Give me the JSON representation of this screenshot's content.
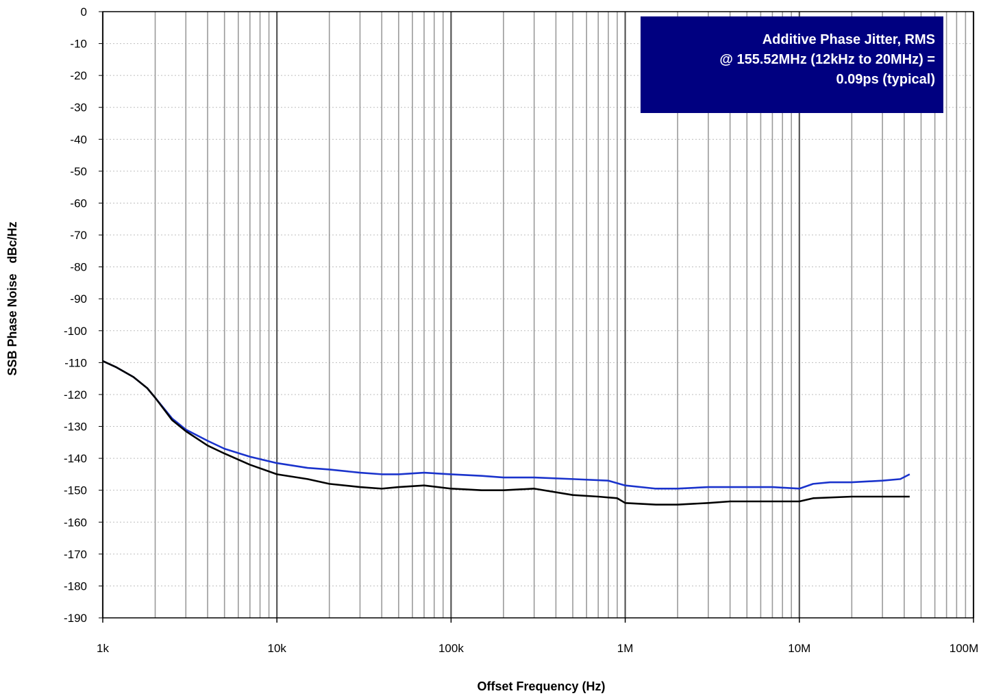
{
  "chart_data": {
    "type": "line",
    "title": "",
    "xlabel": "Offset Frequency (Hz)",
    "ylabel": "SSB Phase Noise   dBc/Hz",
    "x_scale": "log",
    "xlim": [
      1000,
      100000000
    ],
    "ylim": [
      -190,
      0
    ],
    "y_ticks": [
      0,
      -10,
      -20,
      -30,
      -40,
      -50,
      -60,
      -70,
      -80,
      -90,
      -100,
      -110,
      -120,
      -130,
      -140,
      -150,
      -160,
      -170,
      -180,
      -190
    ],
    "x_ticks": [
      1000,
      10000,
      100000,
      1000000,
      10000000,
      100000000
    ],
    "x_tick_labels": [
      "1k",
      "10k",
      "100k",
      "1M",
      "10M",
      "100M"
    ],
    "grid": true,
    "annotation": {
      "lines": [
        "Additive Phase Jitter, RMS",
        "@ 155.52MHz (12kHz to 20MHz) =",
        "0.09ps (typical)"
      ],
      "background": "#000080",
      "text_color": "#ffffff",
      "placement": "top-right"
    },
    "series": [
      {
        "color": "#1a33cc",
        "points": [
          [
            1000,
            -109.5
          ],
          [
            1200,
            -111.5
          ],
          [
            1500,
            -114.5
          ],
          [
            1800,
            -118
          ],
          [
            2000,
            -121
          ],
          [
            2500,
            -127.5
          ],
          [
            3000,
            -131
          ],
          [
            4000,
            -134.5
          ],
          [
            5000,
            -137
          ],
          [
            7000,
            -139.5
          ],
          [
            10000,
            -141.5
          ],
          [
            15000,
            -143
          ],
          [
            20000,
            -143.5
          ],
          [
            30000,
            -144.5
          ],
          [
            40000,
            -145
          ],
          [
            50000,
            -145
          ],
          [
            70000,
            -144.5
          ],
          [
            100000,
            -145
          ],
          [
            150000,
            -145.5
          ],
          [
            200000,
            -146
          ],
          [
            300000,
            -146
          ],
          [
            500000,
            -146.5
          ],
          [
            800000,
            -147
          ],
          [
            1000000,
            -148.5
          ],
          [
            1500000,
            -149.5
          ],
          [
            2000000,
            -149.5
          ],
          [
            3000000,
            -149
          ],
          [
            5000000,
            -149
          ],
          [
            7000000,
            -149
          ],
          [
            10000000,
            -149.5
          ],
          [
            12000000,
            -148
          ],
          [
            15000000,
            -147.5
          ],
          [
            20000000,
            -147.5
          ],
          [
            30000000,
            -147
          ],
          [
            38000000,
            -146.5
          ],
          [
            43000000,
            -145
          ]
        ]
      },
      {
        "color": "#000000",
        "points": [
          [
            1000,
            -109.5
          ],
          [
            1200,
            -111.5
          ],
          [
            1500,
            -114.5
          ],
          [
            1800,
            -118
          ],
          [
            2000,
            -121
          ],
          [
            2500,
            -128
          ],
          [
            3000,
            -131.5
          ],
          [
            4000,
            -136
          ],
          [
            5000,
            -138.5
          ],
          [
            7000,
            -142
          ],
          [
            10000,
            -145
          ],
          [
            15000,
            -146.5
          ],
          [
            20000,
            -148
          ],
          [
            30000,
            -149
          ],
          [
            40000,
            -149.5
          ],
          [
            50000,
            -149
          ],
          [
            70000,
            -148.5
          ],
          [
            100000,
            -149.5
          ],
          [
            150000,
            -150
          ],
          [
            200000,
            -150
          ],
          [
            300000,
            -149.5
          ],
          [
            500000,
            -151.5
          ],
          [
            700000,
            -152
          ],
          [
            900000,
            -152.5
          ],
          [
            1000000,
            -154
          ],
          [
            1500000,
            -154.5
          ],
          [
            2000000,
            -154.5
          ],
          [
            3000000,
            -154
          ],
          [
            4000000,
            -153.5
          ],
          [
            7000000,
            -153.5
          ],
          [
            10000000,
            -153.5
          ],
          [
            12000000,
            -152.5
          ],
          [
            20000000,
            -152
          ],
          [
            30000000,
            -152
          ],
          [
            43000000,
            -152
          ]
        ]
      }
    ]
  }
}
